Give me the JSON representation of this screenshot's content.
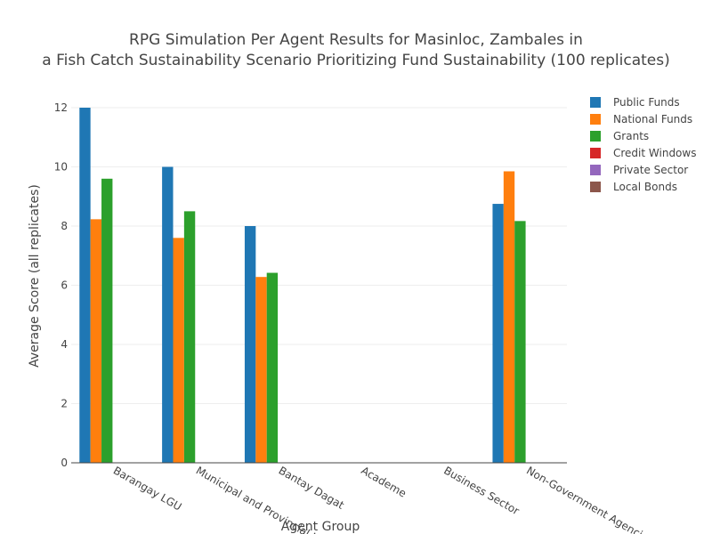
{
  "chart_data": {
    "type": "bar",
    "title_lines": [
      "RPG Simulation Per Agent Results for Masinloc, Zambales in",
      "a Fish Catch Sustainability Scenario Prioritizing Fund Sustainability (100 replicates)"
    ],
    "xlabel": "Agent Group",
    "ylabel": "Average Score (all replicates)",
    "ylim": [
      0,
      12
    ],
    "yticks": [
      0,
      2,
      4,
      6,
      8,
      10,
      12
    ],
    "grid": true,
    "legend_position": "top-right",
    "categories": [
      "Barangay LGU",
      "Municipal and Provincial LGU",
      "Bantay Dagat",
      "Academe",
      "Business Sector",
      "Non-Government Agencies"
    ],
    "series": [
      {
        "name": "Public Funds",
        "color": "#1f77b4",
        "values": [
          12.0,
          10.0,
          8.0,
          null,
          null,
          8.75
        ]
      },
      {
        "name": "National Funds",
        "color": "#ff7f0e",
        "values": [
          8.23,
          7.6,
          6.28,
          null,
          null,
          9.85
        ]
      },
      {
        "name": "Grants",
        "color": "#2ca02c",
        "values": [
          9.6,
          8.5,
          6.42,
          null,
          null,
          8.17
        ]
      },
      {
        "name": "Credit Windows",
        "color": "#d62728",
        "values": [
          null,
          null,
          null,
          null,
          null,
          null
        ]
      },
      {
        "name": "Private Sector",
        "color": "#9467bd",
        "values": [
          null,
          null,
          null,
          null,
          null,
          null
        ]
      },
      {
        "name": "Local Bonds",
        "color": "#8c564b",
        "values": [
          null,
          null,
          null,
          null,
          null,
          null
        ]
      }
    ]
  }
}
